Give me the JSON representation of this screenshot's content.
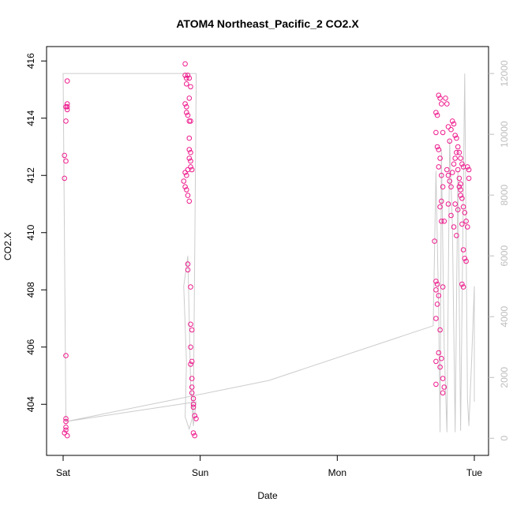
{
  "chart_data": {
    "type": "scatter",
    "title": "ATOM4 Northeast_Pacific_2 CO2.X",
    "xlabel": "Date",
    "ylabel": "CO2.X",
    "x_ticks": [
      "Sat",
      "Sun",
      "Mon",
      "Tue"
    ],
    "x_lim_days": [
      -0.1,
      3.08
    ],
    "y_left_lim": [
      402.6,
      416.2
    ],
    "y_left_ticks": [
      404,
      406,
      408,
      410,
      412,
      414,
      416
    ],
    "y_right_lim": [
      -200,
      12600
    ],
    "y_right_ticks": [
      0,
      2000,
      4000,
      6000,
      8000,
      10000,
      12000
    ],
    "colors": {
      "points": "#ee1a8c",
      "line": "#cccccc",
      "right_axis": "#bdbdbd",
      "axis": "#000000"
    },
    "series": [
      {
        "kind": "points",
        "points": [
          [
            0.02,
            403.1
          ],
          [
            0.02,
            403.2
          ],
          [
            0.02,
            403.4
          ],
          [
            0.03,
            402.9
          ],
          [
            0.01,
            403.0
          ],
          [
            0.02,
            403.5
          ],
          [
            0.02,
            405.7
          ],
          [
            0.01,
            411.9
          ],
          [
            0.02,
            412.5
          ],
          [
            0.01,
            412.7
          ],
          [
            0.02,
            413.9
          ],
          [
            0.03,
            414.3
          ],
          [
            0.02,
            414.4
          ],
          [
            0.03,
            414.5
          ],
          [
            0.03,
            414.4
          ],
          [
            0.03,
            415.3
          ],
          [
            0.89,
            415.9
          ],
          [
            0.89,
            415.5
          ],
          [
            0.9,
            415.4
          ],
          [
            0.9,
            415.2
          ],
          [
            0.91,
            415.5
          ],
          [
            0.92,
            415.4
          ],
          [
            0.93,
            415.1
          ],
          [
            0.92,
            414.7
          ],
          [
            0.89,
            414.5
          ],
          [
            0.9,
            414.4
          ],
          [
            0.9,
            414.2
          ],
          [
            0.91,
            414.1
          ],
          [
            0.92,
            413.9
          ],
          [
            0.93,
            413.9
          ],
          [
            0.92,
            413.3
          ],
          [
            0.89,
            412.1
          ],
          [
            0.9,
            412.0
          ],
          [
            0.91,
            412.2
          ],
          [
            0.92,
            412.6
          ],
          [
            0.93,
            412.8
          ],
          [
            0.92,
            412.9
          ],
          [
            0.88,
            411.8
          ],
          [
            0.89,
            411.6
          ],
          [
            0.9,
            411.5
          ],
          [
            0.91,
            411.3
          ],
          [
            0.92,
            411.1
          ],
          [
            0.93,
            412.3
          ],
          [
            0.93,
            412.5
          ],
          [
            0.94,
            412.2
          ],
          [
            0.91,
            408.9
          ],
          [
            0.91,
            408.7
          ],
          [
            0.93,
            408.1
          ],
          [
            0.93,
            406.8
          ],
          [
            0.94,
            406.6
          ],
          [
            0.93,
            406.0
          ],
          [
            0.94,
            405.5
          ],
          [
            0.93,
            405.4
          ],
          [
            0.94,
            404.9
          ],
          [
            0.94,
            404.6
          ],
          [
            0.95,
            404.2
          ],
          [
            0.95,
            404.0
          ],
          [
            0.94,
            404.4
          ],
          [
            0.95,
            403.9
          ],
          [
            0.96,
            403.6
          ],
          [
            0.97,
            403.5
          ],
          [
            0.95,
            403.0
          ],
          [
            0.96,
            402.9
          ],
          [
            2.72,
            414.2
          ],
          [
            2.73,
            414.1
          ],
          [
            2.74,
            414.8
          ],
          [
            2.75,
            414.7
          ],
          [
            2.76,
            414.5
          ],
          [
            2.77,
            413.5
          ],
          [
            2.72,
            413.5
          ],
          [
            2.73,
            413.0
          ],
          [
            2.74,
            412.9
          ],
          [
            2.75,
            412.6
          ],
          [
            2.74,
            412.3
          ],
          [
            2.76,
            412.0
          ],
          [
            2.77,
            411.6
          ],
          [
            2.76,
            411.1
          ],
          [
            2.75,
            410.9
          ],
          [
            2.76,
            410.4
          ],
          [
            2.78,
            410.4
          ],
          [
            2.71,
            409.7
          ],
          [
            2.72,
            408.3
          ],
          [
            2.73,
            408.2
          ],
          [
            2.72,
            408.0
          ],
          [
            2.74,
            407.8
          ],
          [
            2.73,
            407.5
          ],
          [
            2.72,
            407.0
          ],
          [
            2.77,
            408.1
          ],
          [
            2.75,
            406.6
          ],
          [
            2.74,
            405.8
          ],
          [
            2.76,
            405.6
          ],
          [
            2.75,
            405.3
          ],
          [
            2.77,
            404.9
          ],
          [
            2.78,
            404.6
          ],
          [
            2.77,
            404.4
          ],
          [
            2.72,
            404.7
          ],
          [
            2.72,
            405.5
          ],
          [
            2.79,
            414.7
          ],
          [
            2.8,
            414.5
          ],
          [
            2.81,
            413.7
          ],
          [
            2.82,
            413.2
          ],
          [
            2.83,
            413.6
          ],
          [
            2.84,
            413.9
          ],
          [
            2.85,
            413.8
          ],
          [
            2.86,
            413.4
          ],
          [
            2.87,
            413.3
          ],
          [
            2.88,
            413.0
          ],
          [
            2.89,
            412.8
          ],
          [
            2.9,
            412.6
          ],
          [
            2.91,
            412.4
          ],
          [
            2.92,
            412.3
          ],
          [
            2.8,
            412.2
          ],
          [
            2.81,
            412.0
          ],
          [
            2.82,
            411.8
          ],
          [
            2.83,
            411.6
          ],
          [
            2.84,
            412.1
          ],
          [
            2.85,
            412.4
          ],
          [
            2.86,
            412.6
          ],
          [
            2.87,
            412.8
          ],
          [
            2.88,
            412.2
          ],
          [
            2.89,
            411.9
          ],
          [
            2.9,
            411.5
          ],
          [
            2.91,
            411.2
          ],
          [
            2.92,
            410.9
          ],
          [
            2.93,
            410.7
          ],
          [
            2.94,
            410.4
          ],
          [
            2.95,
            410.2
          ],
          [
            2.81,
            411.0
          ],
          [
            2.83,
            410.6
          ],
          [
            2.85,
            410.2
          ],
          [
            2.87,
            409.9
          ],
          [
            2.89,
            411.6
          ],
          [
            2.9,
            411.7
          ],
          [
            2.91,
            410.3
          ],
          [
            2.92,
            409.4
          ],
          [
            2.93,
            409.1
          ],
          [
            2.94,
            409.0
          ],
          [
            2.95,
            412.3
          ],
          [
            2.96,
            412.2
          ],
          [
            2.96,
            411.9
          ],
          [
            2.91,
            408.2
          ],
          [
            2.92,
            408.1
          ],
          [
            2.9,
            411.3
          ],
          [
            2.88,
            410.8
          ],
          [
            2.86,
            411.0
          ]
        ]
      },
      {
        "kind": "line",
        "axis": "right",
        "points": [
          [
            0.02,
            550
          ],
          [
            0.0,
            12000
          ],
          [
            0.03,
            12000
          ],
          [
            0.9,
            12000
          ],
          [
            0.97,
            12000
          ],
          [
            0.97,
            11500
          ],
          [
            0.95,
            800
          ],
          [
            0.92,
            300
          ],
          [
            0.89,
            700
          ],
          [
            0.9,
            2500
          ],
          [
            0.88,
            5000
          ],
          [
            0.91,
            6000
          ],
          [
            0.93,
            1800
          ],
          [
            0.95,
            400
          ],
          [
            0.97,
            1200
          ],
          [
            0.02,
            550
          ],
          [
            1.5,
            1900
          ],
          [
            2.7,
            3700
          ],
          [
            2.72,
            8800
          ],
          [
            2.74,
            4200
          ],
          [
            2.75,
            200
          ],
          [
            2.76,
            9500
          ],
          [
            2.78,
            3000
          ],
          [
            2.8,
            200
          ],
          [
            2.82,
            9800
          ],
          [
            2.84,
            7000
          ],
          [
            2.86,
            200
          ],
          [
            2.88,
            8800
          ],
          [
            2.9,
            250
          ],
          [
            2.93,
            12000
          ],
          [
            2.95,
            1300
          ],
          [
            2.96,
            400
          ],
          [
            2.98,
            2500
          ],
          [
            3.0,
            5000
          ],
          [
            3.0,
            1200
          ]
        ]
      }
    ]
  }
}
